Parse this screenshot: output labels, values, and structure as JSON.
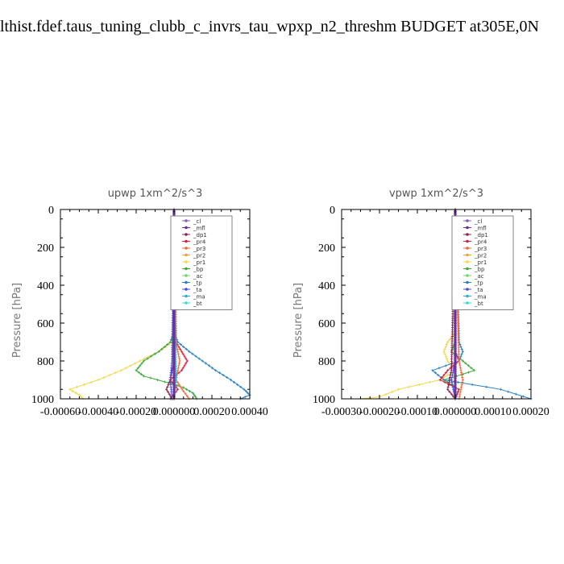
{
  "page_title": "lthist.fdef.taus_tuning_clubb_c_invrs_tau_wpxp_n2_threshm  BUDGET at305E,0N",
  "colors": {
    "_cl": "#7f5fbf",
    "_mfl": "#6a2a9a",
    "_dp1": "#8a1f55",
    "_pr4": "#d81f3f",
    "_pr3": "#ef6a3a",
    "_pr2": "#f2a23a",
    "_pr1": "#f2d84a",
    "_bp": "#3aa83a",
    "_ac": "#6ad86a",
    "_tp": "#2a7fc0",
    "_ta": "#4a4ad8",
    "_ma": "#2ab0c8",
    "_bt": "#3ad8d8"
  },
  "chart_data": [
    {
      "type": "line",
      "title": "upwp   1xm^2/s^3",
      "ylabel": "Pressure [hPa]",
      "xlim": [
        -0.0006,
        0.0004
      ],
      "ylim": [
        1000,
        0
      ],
      "xticks": [
        "-0.00060",
        "-0.00040",
        "-0.00020",
        "0.000000",
        "0.00020",
        "0.00040"
      ],
      "yticks": [
        "0",
        "200",
        "400",
        "600",
        "800",
        "1000"
      ],
      "legend": [
        "_cl",
        "_mfl",
        "_dp1",
        "_pr4",
        "_pr3",
        "_pr2",
        "_pr1",
        "_bp",
        "_ac",
        "_tp",
        "_ta",
        "_ma",
        "_bt"
      ],
      "legend_position": "top-right",
      "series": [
        {
          "name": "_pr1",
          "y": [
            0,
            600,
            700,
            750,
            800,
            850,
            900,
            950,
            980,
            1000
          ],
          "x": [
            0,
            0,
            -1e-05,
            -8e-05,
            -0.00018,
            -0.00028,
            -0.0004,
            -0.00055,
            -0.0005,
            -0.00048
          ]
        },
        {
          "name": "_bp",
          "y": [
            0,
            650,
            700,
            750,
            800,
            850,
            880,
            910,
            940,
            970,
            1000
          ],
          "x": [
            0,
            0,
            -2e-05,
            -8e-05,
            -0.00016,
            -0.0002,
            -0.00016,
            -5e-05,
            5e-05,
            0.0001,
            0.00012
          ]
        },
        {
          "name": "_tp",
          "y": [
            0,
            650,
            700,
            750,
            800,
            850,
            900,
            950,
            980,
            1000
          ],
          "x": [
            0,
            0,
            2e-05,
            8e-05,
            0.00015,
            0.00022,
            0.0003,
            0.00037,
            0.0004,
            0.00035
          ]
        },
        {
          "name": "_pr4",
          "y": [
            0,
            700,
            750,
            800,
            850,
            900,
            950,
            1000
          ],
          "x": [
            0,
            1e-05,
            4e-05,
            7e-05,
            4e-05,
            -2e-05,
            2e-05,
            -2e-05
          ]
        },
        {
          "name": "_pr3",
          "y": [
            0,
            700,
            800,
            900,
            960,
            1000
          ],
          "x": [
            0,
            1e-05,
            3e-05,
            1e-05,
            5e-05,
            8e-05
          ]
        },
        {
          "name": "_dp1",
          "y": [
            0,
            800,
            900,
            950,
            1000
          ],
          "x": [
            0,
            0,
            -2e-05,
            -4e-05,
            -1e-05
          ]
        },
        {
          "name": "_ta",
          "y": [
            0,
            800,
            900,
            1000
          ],
          "x": [
            0,
            -1e-05,
            -2e-05,
            -1e-05
          ]
        },
        {
          "name": "_ma",
          "y": [
            0,
            900,
            1000
          ],
          "x": [
            0,
            1e-05,
            0
          ]
        },
        {
          "name": "_ac",
          "y": [
            0,
            1000
          ],
          "x": [
            0,
            0
          ]
        },
        {
          "name": "_bt",
          "y": [
            0,
            1000
          ],
          "x": [
            0,
            0
          ]
        },
        {
          "name": "_cl",
          "y": [
            0,
            1000
          ],
          "x": [
            0,
            0
          ]
        },
        {
          "name": "_mfl",
          "y": [
            0,
            1000
          ],
          "x": [
            0,
            0
          ]
        }
      ]
    },
    {
      "type": "line",
      "title": "vpwp   1xm^2/s^3",
      "ylabel": "Pressure [hPa]",
      "xlim": [
        -0.0003,
        0.0002
      ],
      "ylim": [
        1000,
        0
      ],
      "xticks": [
        "-0.00030",
        "-0.00020",
        "-0.00010",
        "0.000000",
        "0.00010",
        "0.00020"
      ],
      "yticks": [
        "0",
        "200",
        "400",
        "600",
        "800",
        "1000"
      ],
      "legend": [
        "_cl",
        "_mfl",
        "_dp1",
        "_pr4",
        "_pr3",
        "_pr2",
        "_pr1",
        "_bp",
        "_ac",
        "_tp",
        "_ta",
        "_ma",
        "_bt"
      ],
      "legend_position": "top-right",
      "series": [
        {
          "name": "_pr1",
          "y": [
            0,
            650,
            700,
            750,
            800,
            850,
            900,
            950,
            990,
            1000
          ],
          "x": [
            0,
            0,
            -2e-05,
            -3e-05,
            -2e-05,
            0,
            -4e-05,
            -0.00015,
            -0.0002,
            -0.00025
          ]
        },
        {
          "name": "_bp",
          "y": [
            0,
            700,
            750,
            800,
            850,
            870,
            900,
            950,
            1000
          ],
          "x": [
            0,
            0,
            -1e-05,
            2e-05,
            5e-05,
            2e-05,
            -3e-05,
            1e-05,
            0
          ]
        },
        {
          "name": "_tp",
          "y": [
            0,
            700,
            750,
            800,
            850,
            900,
            950,
            1000
          ],
          "x": [
            0,
            1e-05,
            2e-05,
            1e-05,
            -6e-05,
            -3e-05,
            0.00012,
            0.0002
          ]
        },
        {
          "name": "_pr4",
          "y": [
            0,
            750,
            800,
            850,
            900,
            950,
            1000
          ],
          "x": [
            0,
            0,
            1e-05,
            -2e-05,
            -4e-05,
            1e-05,
            0
          ]
        },
        {
          "name": "_pr3",
          "y": [
            0,
            800,
            900,
            1000
          ],
          "x": [
            0,
            1e-05,
            2e-05,
            1e-05
          ]
        },
        {
          "name": "_dp1",
          "y": [
            0,
            850,
            950,
            1000
          ],
          "x": [
            0,
            -1e-05,
            -2e-05,
            0
          ]
        },
        {
          "name": "_ta",
          "y": [
            0,
            800,
            900,
            1000
          ],
          "x": [
            0,
            0,
            -1e-05,
            0
          ]
        },
        {
          "name": "_ma",
          "y": [
            0,
            1000
          ],
          "x": [
            0,
            0
          ]
        },
        {
          "name": "_ac",
          "y": [
            0,
            1000
          ],
          "x": [
            0,
            0
          ]
        },
        {
          "name": "_bt",
          "y": [
            0,
            1000
          ],
          "x": [
            0,
            0
          ]
        },
        {
          "name": "_cl",
          "y": [
            0,
            1000
          ],
          "x": [
            0,
            0
          ]
        },
        {
          "name": "_mfl",
          "y": [
            0,
            1000
          ],
          "x": [
            0,
            0
          ]
        }
      ]
    }
  ]
}
